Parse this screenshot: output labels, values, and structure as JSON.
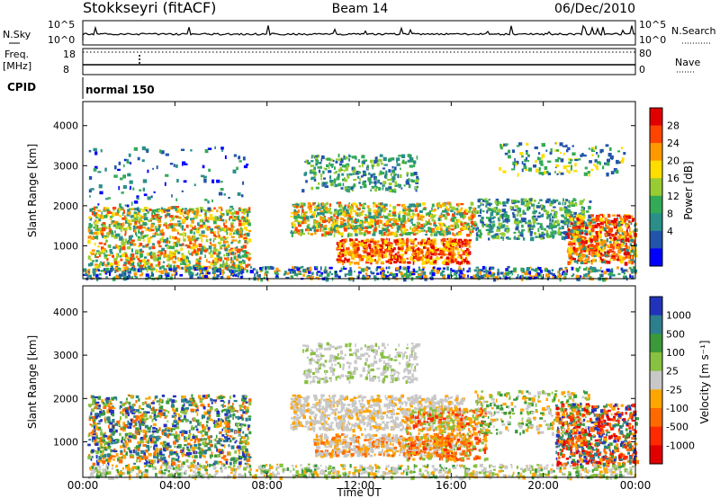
{
  "header": {
    "title": "Stokkseyri (fitACF)",
    "beam": "Beam 14",
    "date": "06/Dec/2010"
  },
  "top_panels": {
    "nsky_label": "N.Sky",
    "nsky_ticks": [
      "10^5",
      "10^0"
    ],
    "nsearch_label": "N.Search",
    "nsearch_ticks": [
      "10^5",
      "10^0"
    ],
    "freq_label": "Freq.",
    "freq_unit": "[MHz]",
    "freq_ticks": [
      "18",
      "8"
    ],
    "nave_label": "Nave",
    "nave_ticks": [
      "80",
      "0"
    ],
    "cpid_label": "CPID",
    "cpid_value": "normal 150"
  },
  "chart_data": [
    {
      "type": "heatmap",
      "name": "power",
      "ylabel": "Slant Range [km]",
      "xlabel": "",
      "x_range": [
        "00:00",
        "24:00"
      ],
      "ylim": [
        180,
        4600
      ],
      "y_ticks": [
        "1000",
        "2000",
        "3000",
        "4000"
      ],
      "colorbar": {
        "label": "Power [dB]",
        "ticks": [
          "28",
          "24",
          "20",
          "16",
          "12",
          "8",
          "4"
        ],
        "colors": [
          "#e10000",
          "#ff4400",
          "#ff9900",
          "#ffdd00",
          "#99cc33",
          "#33aa55",
          "#2a8f88",
          "#2255aa",
          "#0000ff"
        ]
      },
      "echo_regions": [
        {
          "t": [
            0.2,
            7.2
          ],
          "r": [
            500,
            2200
          ],
          "value": "20-28 dB"
        },
        {
          "t": [
            9.0,
            16.5
          ],
          "r": [
            600,
            2100
          ],
          "value": "16-28 dB"
        },
        {
          "t": [
            17.0,
            22.0
          ],
          "r": [
            1200,
            2200
          ],
          "value": "8-16 dB"
        },
        {
          "t": [
            21.0,
            24.0
          ],
          "r": [
            600,
            1800
          ],
          "value": "24-28 dB"
        },
        {
          "t": [
            9.5,
            14.5
          ],
          "r": [
            2400,
            3300
          ],
          "value": "4-12 dB"
        }
      ]
    },
    {
      "type": "heatmap",
      "name": "velocity",
      "ylabel": "Slant Range [km]",
      "xlabel": "Time UT",
      "x_range": [
        "00:00",
        "24:00"
      ],
      "x_ticks": [
        "00:00",
        "04:00",
        "08:00",
        "12:00",
        "16:00",
        "20:00",
        "00:00"
      ],
      "ylim": [
        180,
        4600
      ],
      "y_ticks": [
        "1000",
        "2000",
        "3000",
        "4000"
      ],
      "colorbar": {
        "label": "Velocity [m s⁻¹]",
        "ticks": [
          "1000",
          "500",
          "100",
          "25",
          "-25",
          "-100",
          "-500",
          "-1000"
        ],
        "colors": [
          "#2233bb",
          "#2c7f8f",
          "#3a9a3a",
          "#88c040",
          "#c8c8c8",
          "#ffa500",
          "#ff6a00",
          "#ff2a00",
          "#e10000"
        ]
      },
      "echo_regions": [
        {
          "t": [
            0.2,
            7.2
          ],
          "r": [
            500,
            2200
          ],
          "value": "25 to 500 m/s"
        },
        {
          "t": [
            9.0,
            16.0
          ],
          "r": [
            600,
            3300
          ],
          "value": "ground scatter (-25 to 25)"
        },
        {
          "t": [
            14.0,
            17.5
          ],
          "r": [
            600,
            1800
          ],
          "value": "-100 to -500 m/s"
        },
        {
          "t": [
            20.5,
            24.0
          ],
          "r": [
            500,
            1900
          ],
          "value": "mixed -500 to 500 m/s"
        }
      ]
    }
  ]
}
